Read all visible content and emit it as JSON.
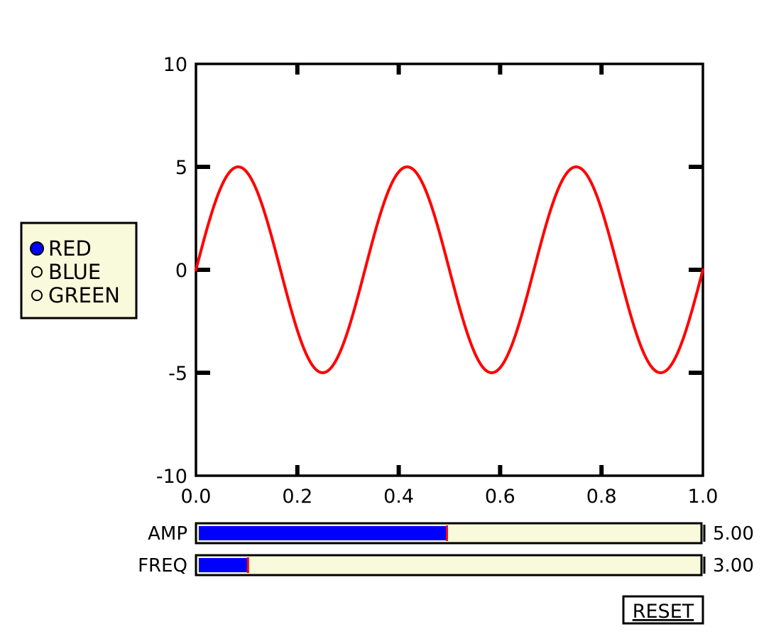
{
  "chart_data": {
    "type": "line",
    "title": "",
    "xlabel": "",
    "ylabel": "",
    "xlim": [
      0.0,
      1.0
    ],
    "ylim": [
      -10,
      10
    ],
    "x_ticks": [
      "0.0",
      "0.2",
      "0.4",
      "0.6",
      "0.8",
      "1.0"
    ],
    "y_ticks": [
      "10",
      "5",
      "0",
      "-5",
      "-10"
    ],
    "grid": false,
    "series": [
      {
        "function": "amplitude * sin(2 * pi * frequency * x)",
        "amplitude": 5.0,
        "frequency": 3.0,
        "color": "#ff0000"
      }
    ]
  },
  "legend": {
    "selected": "RED",
    "options": [
      "RED",
      "BLUE",
      "GREEN"
    ],
    "selected_color": "#0000ff",
    "background": "#f9f9dc"
  },
  "sliders": [
    {
      "label": "AMP",
      "value": 5.0,
      "value_text": "5.00",
      "min": 0.1,
      "max": 10.0,
      "fill_color": "#0000ff",
      "marker_color": "#ff0000"
    },
    {
      "label": "FREQ",
      "value": 3.0,
      "value_text": "3.00",
      "min": 0.1,
      "max": 30.0,
      "fill_color": "#0000ff",
      "marker_color": "#ff0000"
    }
  ],
  "reset_button": {
    "label": "RESET"
  }
}
